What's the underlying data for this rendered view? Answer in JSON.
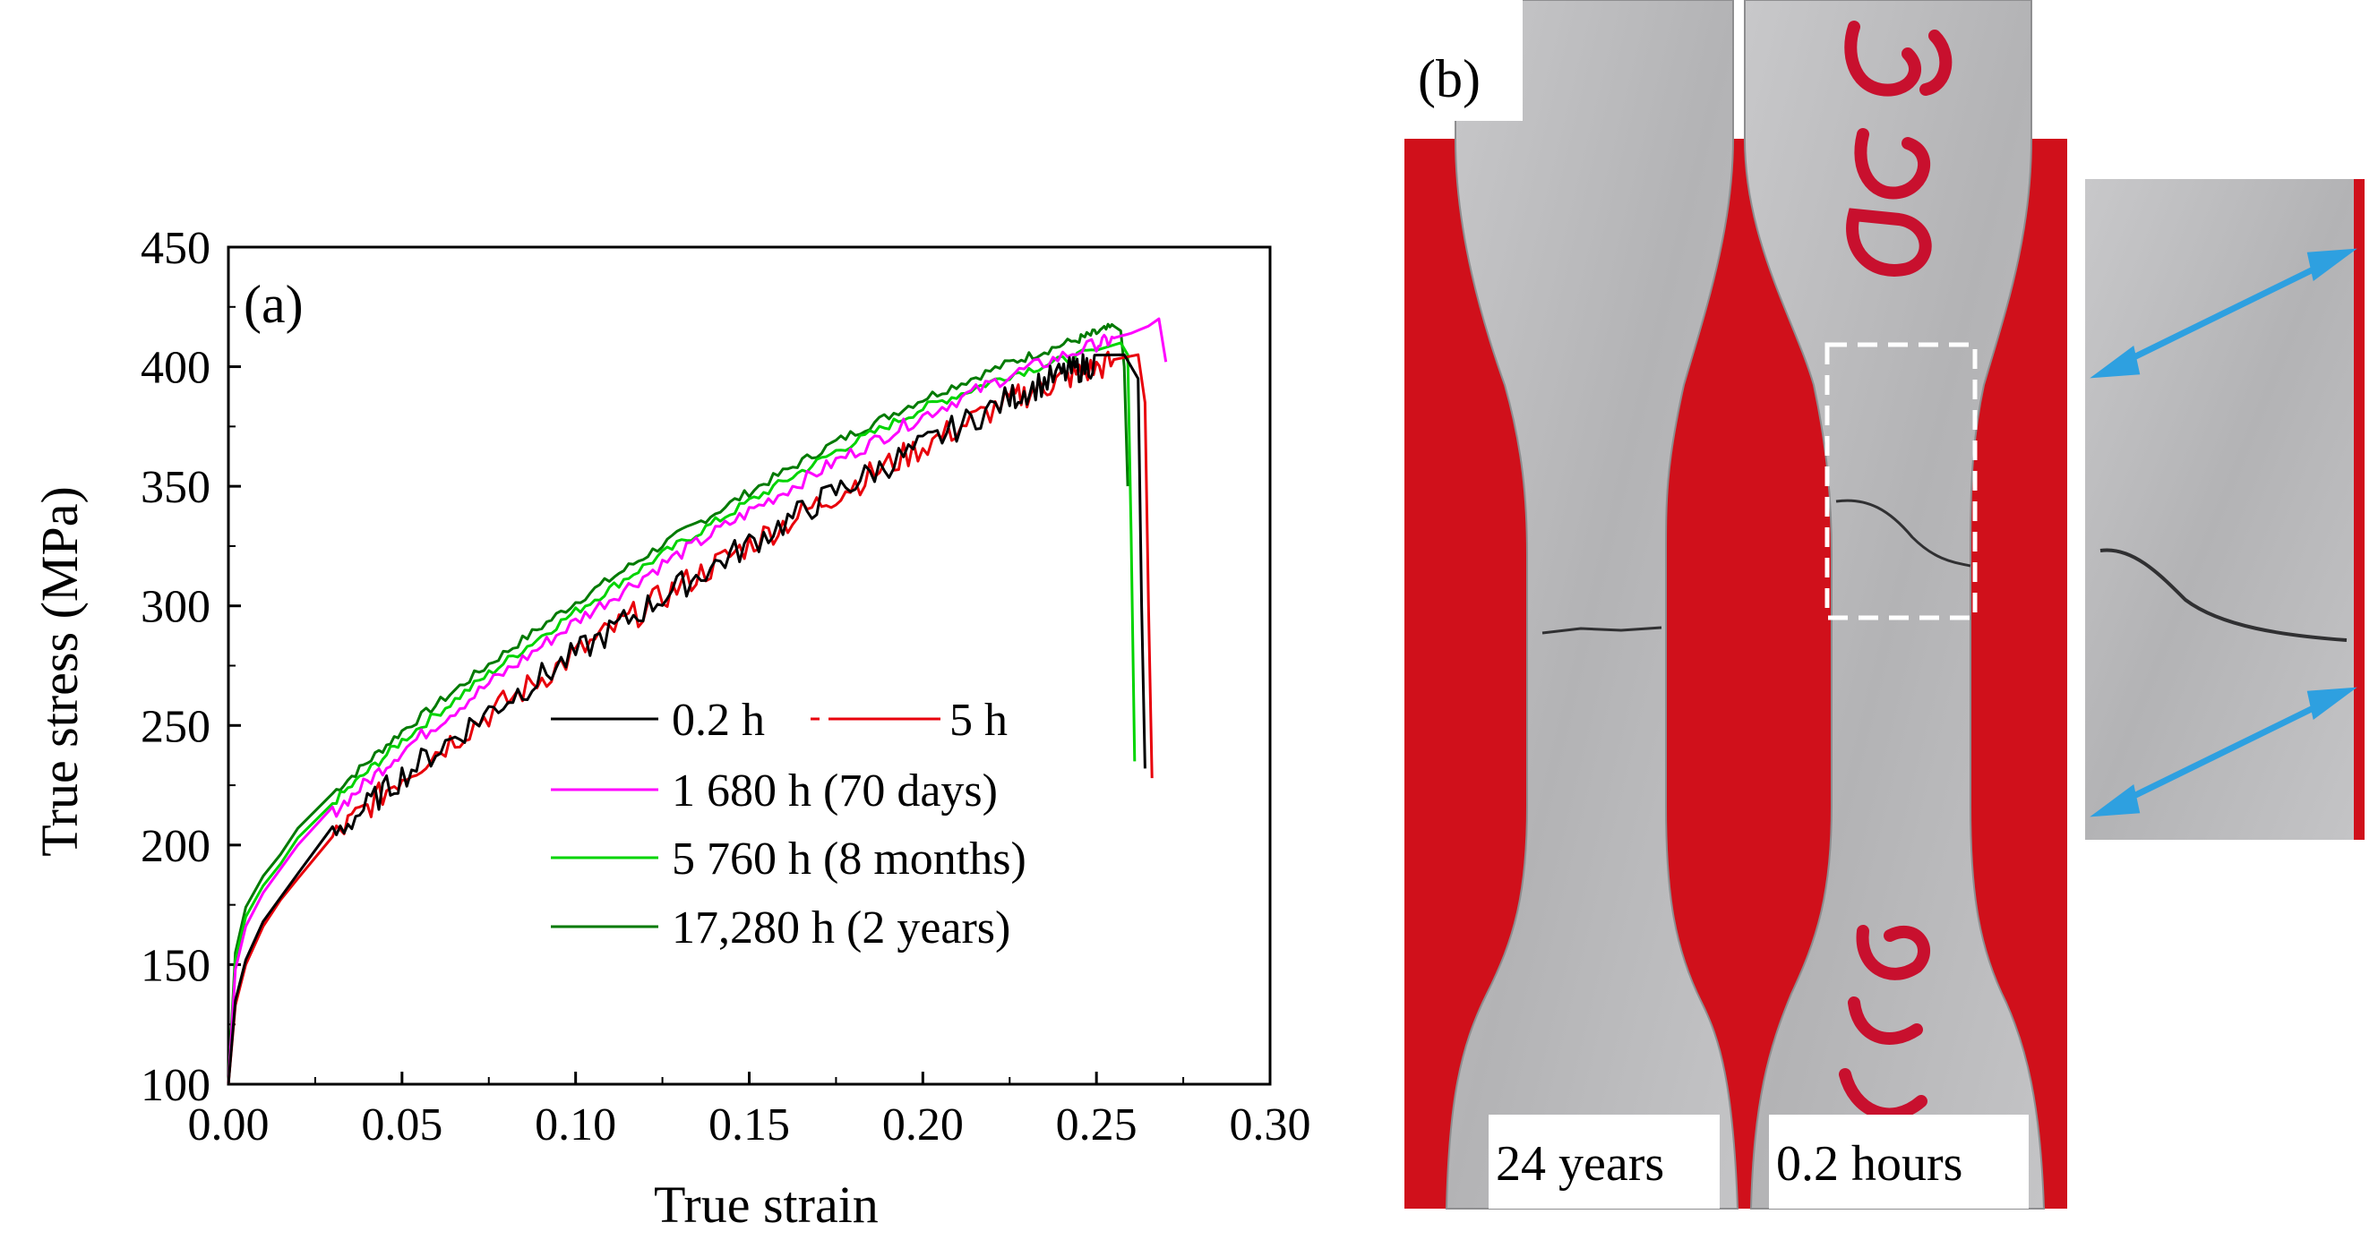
{
  "colors": {
    "series_0_2h": "#000000",
    "series_5h": "#e8000b",
    "series_1680h": "#ff00ff",
    "series_5760h": "#00d400",
    "series_17280h": "#007a00",
    "background_red": "#d0101b",
    "metal": "#b9b9bb",
    "arrow": "#2ea0e0"
  },
  "panel_a": {
    "label": "(a)"
  },
  "chart_data": {
    "type": "line",
    "title": "",
    "xlabel": "True strain",
    "ylabel": "True stress (MPa)",
    "xlim": [
      0,
      0.3
    ],
    "ylim": [
      100,
      450
    ],
    "xticks": [
      "0.00",
      "0.05",
      "0.10",
      "0.15",
      "0.20",
      "0.25",
      "0.30"
    ],
    "yticks": [
      "100",
      "150",
      "200",
      "250",
      "300",
      "350",
      "400",
      "450"
    ],
    "grid": false,
    "legend_position": "center-right",
    "series": [
      {
        "name": "0.2 h",
        "color": "#000000",
        "x": [
          0,
          0.002,
          0.005,
          0.01,
          0.015,
          0.02,
          0.03,
          0.05,
          0.075,
          0.1,
          0.125,
          0.15,
          0.175,
          0.2,
          0.225,
          0.24,
          0.25,
          0.258,
          0.262,
          0.263,
          0.264
        ],
        "y": [
          100,
          135,
          152,
          168,
          178,
          188,
          205,
          230,
          257,
          281,
          305,
          327,
          349,
          368,
          388,
          398,
          403,
          405,
          395,
          300,
          232
        ]
      },
      {
        "name": "5 h",
        "color": "#e8000b",
        "x": [
          0,
          0.002,
          0.005,
          0.01,
          0.015,
          0.02,
          0.03,
          0.05,
          0.075,
          0.1,
          0.125,
          0.15,
          0.175,
          0.2,
          0.225,
          0.24,
          0.255,
          0.262,
          0.264,
          0.265,
          0.266
        ],
        "y": [
          100,
          133,
          150,
          166,
          177,
          186,
          204,
          230,
          256,
          281,
          305,
          327,
          348,
          368,
          387,
          396,
          403,
          405,
          385,
          300,
          228
        ]
      },
      {
        "name": "1 680 h (70 days)",
        "color": "#ff00ff",
        "x": [
          0,
          0.002,
          0.005,
          0.01,
          0.015,
          0.02,
          0.03,
          0.05,
          0.075,
          0.1,
          0.125,
          0.15,
          0.175,
          0.2,
          0.225,
          0.25,
          0.26,
          0.265,
          0.268,
          0.27
        ],
        "y": [
          100,
          148,
          166,
          180,
          190,
          200,
          214,
          240,
          268,
          294,
          318,
          340,
          361,
          380,
          397,
          410,
          414,
          417,
          420,
          402
        ]
      },
      {
        "name": "5 760 h (8 months)",
        "color": "#00d400",
        "x": [
          0,
          0.002,
          0.005,
          0.01,
          0.015,
          0.02,
          0.03,
          0.05,
          0.075,
          0.1,
          0.125,
          0.15,
          0.175,
          0.2,
          0.225,
          0.25,
          0.257,
          0.259,
          0.26,
          0.261
        ],
        "y": [
          100,
          152,
          170,
          183,
          192,
          203,
          218,
          244,
          272,
          298,
          322,
          344,
          365,
          383,
          397,
          407,
          410,
          405,
          330,
          235
        ]
      },
      {
        "name": "17,280 h (2 years)",
        "color": "#007a00",
        "x": [
          0,
          0.002,
          0.005,
          0.01,
          0.015,
          0.02,
          0.03,
          0.05,
          0.075,
          0.1,
          0.125,
          0.15,
          0.175,
          0.2,
          0.225,
          0.245,
          0.255,
          0.257,
          0.258,
          0.259
        ],
        "y": [
          100,
          155,
          174,
          187,
          196,
          207,
          222,
          248,
          276,
          302,
          326,
          348,
          369,
          387,
          402,
          412,
          417,
          415,
          400,
          350
        ]
      }
    ]
  },
  "panel_b": {
    "label": "(b)",
    "specimen_labels": [
      "24 years",
      "0.2 hours"
    ]
  }
}
